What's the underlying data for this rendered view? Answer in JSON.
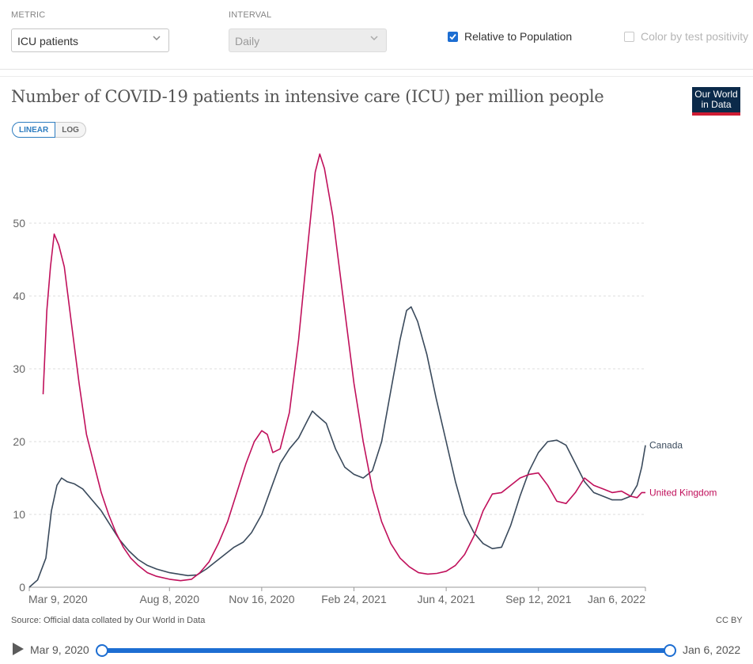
{
  "controls": {
    "metric_label": "METRIC",
    "metric_value": "ICU patients",
    "interval_label": "INTERVAL",
    "interval_value": "Daily",
    "relative_label": "Relative to Population",
    "relative_checked": true,
    "positivity_label": "Color by test positivity",
    "positivity_checked": false
  },
  "logo": {
    "line1": "Our World",
    "line2": "in Data"
  },
  "scale": {
    "linear": "LINEAR",
    "log": "LOG"
  },
  "footer": {
    "source": "Source: Official data collated by Our World in Data",
    "license": "CC BY"
  },
  "timeline": {
    "start": "Mar 9, 2020",
    "end": "Jan 6, 2022"
  },
  "chart_data": {
    "type": "line",
    "title": "Number of COVID-19 patients in intensive care (ICU) per million people",
    "xlabel": "",
    "ylabel": "",
    "x_range": [
      "2020-03-09",
      "2022-01-06"
    ],
    "ylim": [
      0,
      60
    ],
    "y_ticks": [
      0,
      10,
      20,
      30,
      40,
      50
    ],
    "x_ticks": [
      {
        "date": "2020-03-09",
        "label": "Mar 9, 2020"
      },
      {
        "date": "2020-08-08",
        "label": "Aug 8, 2020"
      },
      {
        "date": "2020-11-16",
        "label": "Nov 16, 2020"
      },
      {
        "date": "2021-02-24",
        "label": "Feb 24, 2021"
      },
      {
        "date": "2021-06-04",
        "label": "Jun 4, 2021"
      },
      {
        "date": "2021-09-12",
        "label": "Sep 12, 2021"
      },
      {
        "date": "2022-01-06",
        "label": "Jan 6, 2022"
      }
    ],
    "grid": true,
    "legend": "inline-right",
    "series": [
      {
        "name": "Canada",
        "color": "#3a4a5c",
        "points": [
          [
            "2020-03-09",
            0.0
          ],
          [
            "2020-03-18",
            1.0
          ],
          [
            "2020-03-27",
            4.0
          ],
          [
            "2020-04-02",
            10.5
          ],
          [
            "2020-04-08",
            14.0
          ],
          [
            "2020-04-13",
            15.0
          ],
          [
            "2020-04-19",
            14.5
          ],
          [
            "2020-04-27",
            14.2
          ],
          [
            "2020-05-06",
            13.5
          ],
          [
            "2020-05-16",
            12.0
          ],
          [
            "2020-05-26",
            10.5
          ],
          [
            "2020-06-05",
            8.5
          ],
          [
            "2020-06-15",
            6.5
          ],
          [
            "2020-06-25",
            5.0
          ],
          [
            "2020-07-05",
            3.8
          ],
          [
            "2020-07-15",
            3.0
          ],
          [
            "2020-07-25",
            2.5
          ],
          [
            "2020-08-08",
            2.0
          ],
          [
            "2020-08-18",
            1.8
          ],
          [
            "2020-08-28",
            1.6
          ],
          [
            "2020-09-07",
            1.7
          ],
          [
            "2020-09-17",
            2.5
          ],
          [
            "2020-09-27",
            3.5
          ],
          [
            "2020-10-07",
            4.5
          ],
          [
            "2020-10-17",
            5.5
          ],
          [
            "2020-10-27",
            6.2
          ],
          [
            "2020-11-05",
            7.5
          ],
          [
            "2020-11-16",
            10.0
          ],
          [
            "2020-11-26",
            13.5
          ],
          [
            "2020-12-06",
            17.0
          ],
          [
            "2020-12-16",
            19.0
          ],
          [
            "2020-12-26",
            20.5
          ],
          [
            "2021-01-05",
            23.0
          ],
          [
            "2021-01-10",
            24.2
          ],
          [
            "2021-01-15",
            23.6
          ],
          [
            "2021-01-25",
            22.5
          ],
          [
            "2021-02-04",
            19.0
          ],
          [
            "2021-02-14",
            16.5
          ],
          [
            "2021-02-24",
            15.5
          ],
          [
            "2021-03-06",
            15.0
          ],
          [
            "2021-03-16",
            16.0
          ],
          [
            "2021-03-26",
            20.0
          ],
          [
            "2021-04-05",
            27.0
          ],
          [
            "2021-04-15",
            34.0
          ],
          [
            "2021-04-22",
            38.0
          ],
          [
            "2021-04-27",
            38.5
          ],
          [
            "2021-05-04",
            36.5
          ],
          [
            "2021-05-14",
            32.0
          ],
          [
            "2021-05-24",
            26.0
          ],
          [
            "2021-06-04",
            20.0
          ],
          [
            "2021-06-14",
            14.5
          ],
          [
            "2021-06-24",
            10.0
          ],
          [
            "2021-07-04",
            7.5
          ],
          [
            "2021-07-14",
            6.0
          ],
          [
            "2021-07-24",
            5.3
          ],
          [
            "2021-08-03",
            5.5
          ],
          [
            "2021-08-13",
            8.5
          ],
          [
            "2021-08-23",
            12.5
          ],
          [
            "2021-09-02",
            16.0
          ],
          [
            "2021-09-12",
            18.5
          ],
          [
            "2021-09-22",
            20.0
          ],
          [
            "2021-10-02",
            20.2
          ],
          [
            "2021-10-12",
            19.5
          ],
          [
            "2021-10-22",
            17.0
          ],
          [
            "2021-11-01",
            14.5
          ],
          [
            "2021-11-11",
            13.0
          ],
          [
            "2021-11-21",
            12.5
          ],
          [
            "2021-12-01",
            12.0
          ],
          [
            "2021-12-11",
            12.0
          ],
          [
            "2021-12-21",
            12.5
          ],
          [
            "2021-12-28",
            14.0
          ],
          [
            "2022-01-02",
            16.5
          ],
          [
            "2022-01-06",
            19.5
          ]
        ]
      },
      {
        "name": "United Kingdom",
        "color": "#c0105b",
        "points": [
          [
            "2020-03-24",
            26.5
          ],
          [
            "2020-03-28",
            38.0
          ],
          [
            "2020-04-01",
            44.0
          ],
          [
            "2020-04-05",
            48.5
          ],
          [
            "2020-04-10",
            47.0
          ],
          [
            "2020-04-16",
            44.0
          ],
          [
            "2020-04-24",
            36.0
          ],
          [
            "2020-05-02",
            28.0
          ],
          [
            "2020-05-10",
            21.0
          ],
          [
            "2020-05-18",
            17.0
          ],
          [
            "2020-05-26",
            13.0
          ],
          [
            "2020-06-03",
            10.0
          ],
          [
            "2020-06-11",
            7.5
          ],
          [
            "2020-06-19",
            5.5
          ],
          [
            "2020-06-27",
            4.0
          ],
          [
            "2020-07-05",
            3.0
          ],
          [
            "2020-07-15",
            2.0
          ],
          [
            "2020-07-25",
            1.5
          ],
          [
            "2020-08-08",
            1.1
          ],
          [
            "2020-08-20",
            0.9
          ],
          [
            "2020-09-01",
            1.1
          ],
          [
            "2020-09-10",
            2.0
          ],
          [
            "2020-09-20",
            3.5
          ],
          [
            "2020-09-30",
            6.0
          ],
          [
            "2020-10-10",
            9.0
          ],
          [
            "2020-10-20",
            13.0
          ],
          [
            "2020-10-30",
            17.0
          ],
          [
            "2020-11-08",
            20.0
          ],
          [
            "2020-11-16",
            21.5
          ],
          [
            "2020-11-22",
            21.0
          ],
          [
            "2020-11-28",
            18.5
          ],
          [
            "2020-12-06",
            19.0
          ],
          [
            "2020-12-16",
            24.0
          ],
          [
            "2020-12-26",
            34.0
          ],
          [
            "2021-01-05",
            47.0
          ],
          [
            "2021-01-13",
            57.0
          ],
          [
            "2021-01-18",
            59.5
          ],
          [
            "2021-01-23",
            57.5
          ],
          [
            "2021-02-01",
            51.0
          ],
          [
            "2021-02-12",
            40.0
          ],
          [
            "2021-02-24",
            28.0
          ],
          [
            "2021-03-06",
            20.0
          ],
          [
            "2021-03-16",
            13.5
          ],
          [
            "2021-03-26",
            9.0
          ],
          [
            "2021-04-05",
            6.0
          ],
          [
            "2021-04-15",
            4.0
          ],
          [
            "2021-04-25",
            2.8
          ],
          [
            "2021-05-05",
            2.0
          ],
          [
            "2021-05-15",
            1.8
          ],
          [
            "2021-05-25",
            1.9
          ],
          [
            "2021-06-04",
            2.2
          ],
          [
            "2021-06-14",
            3.0
          ],
          [
            "2021-06-24",
            4.5
          ],
          [
            "2021-07-04",
            7.0
          ],
          [
            "2021-07-14",
            10.5
          ],
          [
            "2021-07-24",
            12.8
          ],
          [
            "2021-08-03",
            13.0
          ],
          [
            "2021-08-13",
            14.0
          ],
          [
            "2021-08-23",
            15.0
          ],
          [
            "2021-09-02",
            15.5
          ],
          [
            "2021-09-12",
            15.7
          ],
          [
            "2021-09-22",
            14.0
          ],
          [
            "2021-10-02",
            11.8
          ],
          [
            "2021-10-12",
            11.5
          ],
          [
            "2021-10-22",
            13.0
          ],
          [
            "2021-11-01",
            15.0
          ],
          [
            "2021-11-11",
            14.0
          ],
          [
            "2021-11-21",
            13.5
          ],
          [
            "2021-12-01",
            13.0
          ],
          [
            "2021-12-11",
            13.2
          ],
          [
            "2021-12-21",
            12.5
          ],
          [
            "2021-12-28",
            12.3
          ],
          [
            "2022-01-02",
            13.0
          ],
          [
            "2022-01-06",
            13.0
          ]
        ]
      }
    ]
  }
}
